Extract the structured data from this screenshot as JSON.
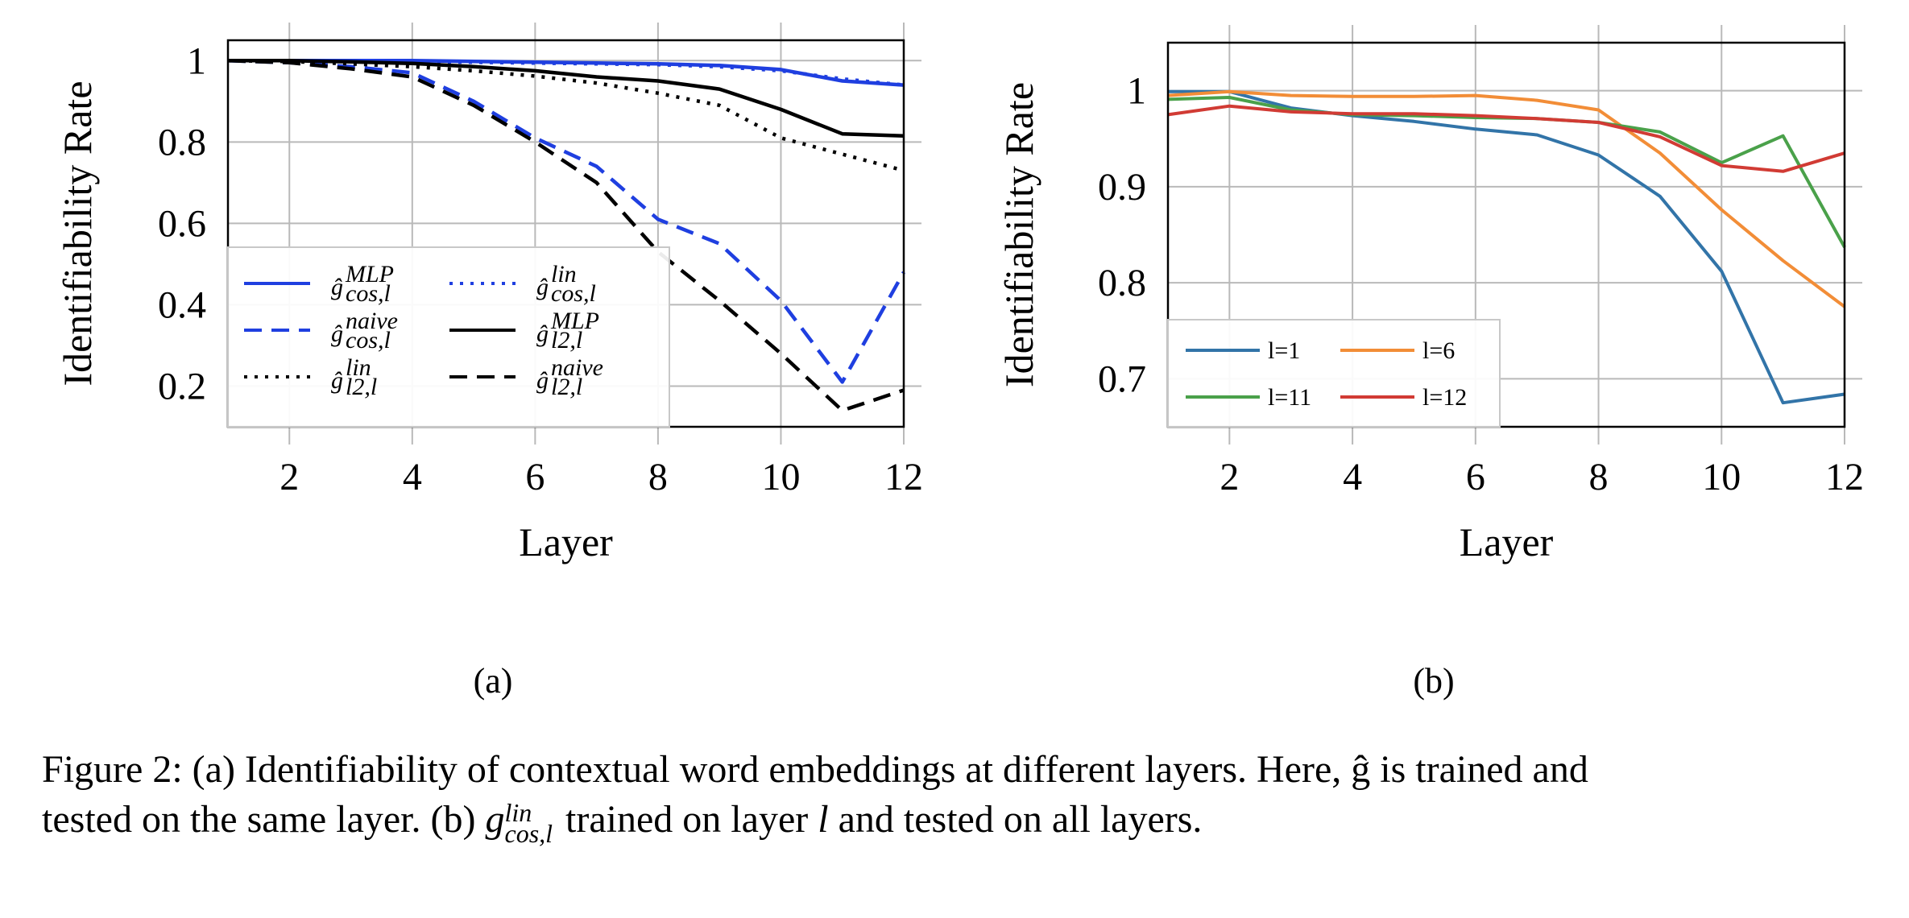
{
  "chart_data": [
    {
      "type": "line",
      "xlabel": "Layer",
      "ylabel": "Identifiability Rate",
      "xlim": [
        1,
        12
      ],
      "ylim": [
        0.1,
        1.05
      ],
      "xticks": [
        2,
        4,
        6,
        8,
        10,
        12
      ],
      "yticks": [
        0.2,
        0.4,
        0.6,
        0.8,
        1
      ],
      "ytick_labels": [
        "0.2",
        "0.4",
        "0.6",
        "0.8",
        "1"
      ],
      "grid": true,
      "legend_position": "lower-left",
      "x": [
        1,
        2,
        3,
        4,
        5,
        6,
        7,
        8,
        9,
        10,
        11,
        12
      ],
      "series": [
        {
          "name": "ĝ_{cos,l}^{MLP}",
          "base": "ĝ",
          "sup": "MLP",
          "sub": "cos,l",
          "color": "#1f3fe0",
          "dash": "solid",
          "values": [
            1.0,
            1.0,
            1.0,
            1.0,
            0.998,
            0.996,
            0.994,
            0.992,
            0.988,
            0.978,
            0.95,
            0.94
          ]
        },
        {
          "name": "ĝ_{cos,l}^{lin}",
          "base": "ĝ",
          "sup": "lin",
          "sub": "cos,l",
          "color": "#1f3fe0",
          "dash": "dotted",
          "values": [
            1.0,
            1.0,
            0.999,
            0.998,
            0.996,
            0.994,
            0.992,
            0.99,
            0.985,
            0.975,
            0.955,
            0.94
          ]
        },
        {
          "name": "ĝ_{cos,l}^{naive}",
          "base": "ĝ",
          "sup": "naive",
          "sub": "cos,l",
          "color": "#1f3fe0",
          "dash": "dashed",
          "values": [
            1.0,
            0.995,
            0.985,
            0.97,
            0.9,
            0.81,
            0.74,
            0.61,
            0.55,
            0.41,
            0.21,
            0.48
          ]
        },
        {
          "name": "ĝ_{l2,l}^{MLP}",
          "base": "ĝ",
          "sup": "MLP",
          "sub": "l2,l",
          "color": "#000000",
          "dash": "solid",
          "values": [
            1.0,
            1.0,
            0.997,
            0.993,
            0.985,
            0.975,
            0.96,
            0.95,
            0.93,
            0.88,
            0.82,
            0.815
          ]
        },
        {
          "name": "ĝ_{l2,l}^{lin}",
          "base": "ĝ",
          "sup": "lin",
          "sub": "l2,l",
          "color": "#000000",
          "dash": "dotted",
          "values": [
            1.0,
            0.998,
            0.992,
            0.985,
            0.975,
            0.962,
            0.945,
            0.92,
            0.89,
            0.81,
            0.77,
            0.73
          ]
        },
        {
          "name": "ĝ_{l2,l}^{naive}",
          "base": "ĝ",
          "sup": "naive",
          "sub": "l2,l",
          "color": "#000000",
          "dash": "dashed",
          "values": [
            1.0,
            0.995,
            0.98,
            0.96,
            0.89,
            0.8,
            0.7,
            0.53,
            0.41,
            0.28,
            0.14,
            0.19
          ]
        }
      ]
    },
    {
      "type": "line",
      "xlabel": "Layer",
      "ylabel": "Identifiability Rate",
      "xlim": [
        1,
        12
      ],
      "ylim": [
        0.65,
        1.05
      ],
      "xticks": [
        2,
        4,
        6,
        8,
        10,
        12
      ],
      "yticks": [
        0.7,
        0.8,
        0.9,
        1.0
      ],
      "ytick_labels": [
        "0.7",
        "0.8",
        "0.9",
        "1"
      ],
      "grid": true,
      "legend_position": "lower-left",
      "x": [
        1,
        2,
        3,
        4,
        5,
        6,
        7,
        8,
        9,
        10,
        11,
        12
      ],
      "series": [
        {
          "name": "l=1",
          "color": "#3274a8",
          "values": [
            0.999,
            0.999,
            0.982,
            0.974,
            0.968,
            0.96,
            0.954,
            0.933,
            0.89,
            0.812,
            0.675,
            0.684
          ]
        },
        {
          "name": "l=6",
          "color": "#f28d37",
          "values": [
            0.995,
            0.999,
            0.995,
            0.994,
            0.994,
            0.995,
            0.99,
            0.98,
            0.935,
            0.876,
            0.823,
            0.775
          ]
        },
        {
          "name": "l=11",
          "color": "#4aa14a",
          "values": [
            0.991,
            0.993,
            0.98,
            0.975,
            0.974,
            0.972,
            0.971,
            0.967,
            0.957,
            0.925,
            0.953,
            0.837
          ]
        },
        {
          "name": "l=12",
          "color": "#d13b34",
          "values": [
            0.975,
            0.984,
            0.978,
            0.976,
            0.976,
            0.974,
            0.971,
            0.967,
            0.952,
            0.922,
            0.916,
            0.935
          ]
        }
      ]
    }
  ],
  "subfigure_labels": [
    "(a)",
    "(b)"
  ],
  "caption": {
    "line1": "Figure 2: (a) Identifiability of contextual word embeddings at different layers. Here, ĝ is trained and",
    "line2_pre": "tested on the same layer. (b) ",
    "line2_g": "g",
    "line2_sup": "lin",
    "line2_sub": "cos,l",
    "line2_mid": " trained on layer ",
    "line2_l": "l",
    "line2_post": " and tested on all layers."
  }
}
